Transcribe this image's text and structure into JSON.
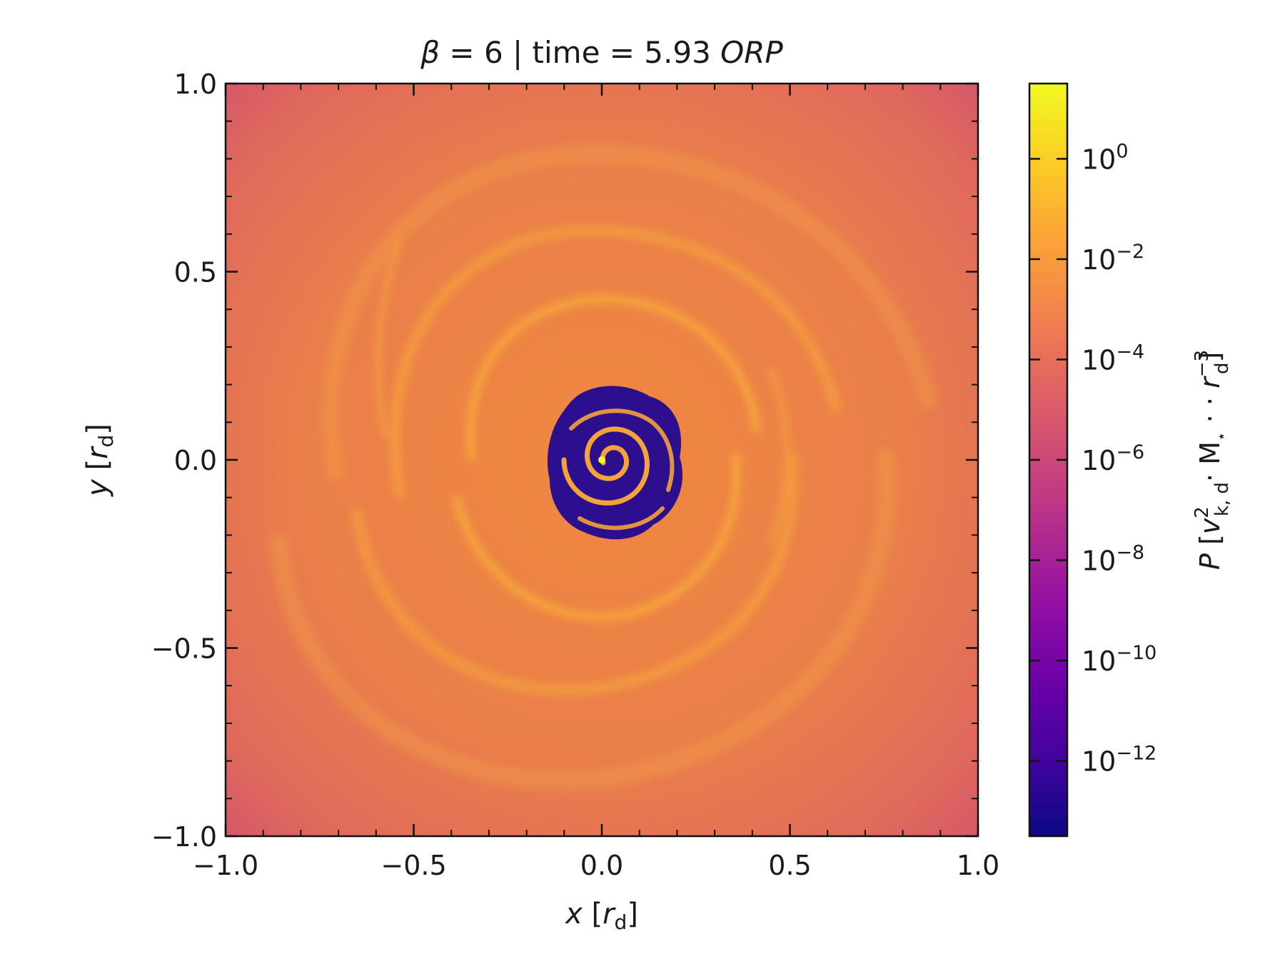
{
  "title": {
    "beta_symbol": "β",
    "beta_text": " = 6 | time = 5.93 ",
    "unit": "ORP"
  },
  "chart_data": {
    "type": "heatmap",
    "x_axis": {
      "label_var": "x",
      "label_unit_sym": "r",
      "label_unit_sub": "d",
      "range": [
        -1.0,
        1.0
      ],
      "major_ticks": [
        -1.0,
        -0.5,
        0.0,
        0.5,
        1.0
      ],
      "tick_labels": [
        "−1.0",
        "−0.5",
        "0.0",
        "0.5",
        "1.0"
      ]
    },
    "y_axis": {
      "label_var": "y",
      "label_unit_sym": "r",
      "label_unit_sub": "d",
      "range": [
        -1.0,
        1.0
      ],
      "major_ticks": [
        -1.0,
        -0.5,
        0.0,
        0.5,
        1.0
      ],
      "tick_labels": [
        "−1.0",
        "−0.5",
        "0.0",
        "0.5",
        "1.0"
      ]
    },
    "colorbar": {
      "scale": "log",
      "colormap": "plasma",
      "exponent_range": [
        -13.5,
        1.5
      ],
      "ticks": [
        {
          "exp": 0,
          "label": "0"
        },
        {
          "exp": -2,
          "label": "−2"
        },
        {
          "exp": -4,
          "label": "−4"
        },
        {
          "exp": -6,
          "label": "−6"
        },
        {
          "exp": -8,
          "label": "−8"
        },
        {
          "exp": -10,
          "label": "−10"
        },
        {
          "exp": -12,
          "label": "−12"
        }
      ],
      "tick_base": "10",
      "label": {
        "var": "P",
        "vk": "v",
        "vk_sup": "2",
        "vk_sub": "k, d",
        "mstar": "· M",
        "mstar_sub": "⋆",
        "dot": " · · ",
        "r": "r",
        "r_sup": "−3",
        "r_sub": "d"
      }
    },
    "grid": false,
    "field_colors": {
      "outer": "#d95d68",
      "disk": "#ec8048",
      "arms": "#f6a33a",
      "cavity": "#2c0f8c",
      "center": "#f0f921"
    }
  }
}
